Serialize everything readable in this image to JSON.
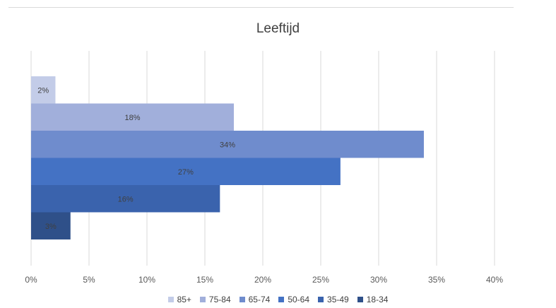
{
  "chart_data": {
    "type": "bar",
    "orientation": "horizontal",
    "title": "Leeftijd",
    "xlabel": "",
    "ylabel": "",
    "xlim": [
      0,
      40
    ],
    "x_ticks": [
      "0%",
      "5%",
      "10%",
      "15%",
      "20%",
      "25%",
      "30%",
      "35%",
      "40%"
    ],
    "grid": true,
    "legend_position": "bottom",
    "series": [
      {
        "name": "85+",
        "value": 2.1,
        "label": "2%",
        "color": "#c3cce8"
      },
      {
        "name": "75-84",
        "value": 17.5,
        "label": "18%",
        "color": "#a1afdb"
      },
      {
        "name": "65-74",
        "value": 33.9,
        "label": "34%",
        "color": "#6f8ccd"
      },
      {
        "name": "50-64",
        "value": 26.7,
        "label": "27%",
        "color": "#4472c4"
      },
      {
        "name": "35-49",
        "value": 16.3,
        "label": "16%",
        "color": "#3a63ad"
      },
      {
        "name": "18-34",
        "value": 3.4,
        "label": "3%",
        "color": "#2f5089"
      }
    ]
  }
}
